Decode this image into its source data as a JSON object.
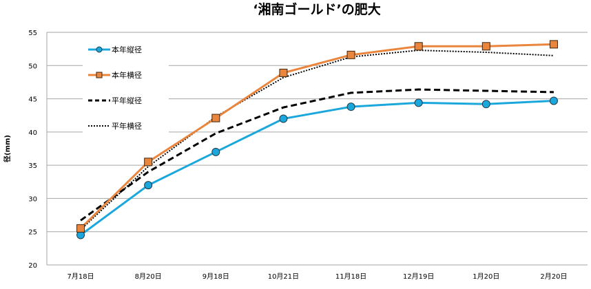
{
  "chart_data": {
    "type": "line",
    "title": "‘湘南ゴールド’の肥大",
    "xlabel": "",
    "ylabel": "径(mm)",
    "ylim": [
      20,
      55
    ],
    "yticks": [
      20,
      25,
      30,
      35,
      40,
      45,
      50,
      55
    ],
    "grid": true,
    "legend_position": "top-left",
    "categories": [
      "7月18日",
      "8月20日",
      "9月18日",
      "10月21日",
      "11月18日",
      "12月19日",
      "1月20日",
      "2月20日"
    ],
    "series": [
      {
        "name": "本年縦径",
        "color": "#1aa7dc",
        "style": "solid-circle",
        "values": [
          24.5,
          32.0,
          37.0,
          42.0,
          43.8,
          44.4,
          44.2,
          44.7
        ]
      },
      {
        "name": "本年横径",
        "color": "#e9853d",
        "style": "solid-square",
        "values": [
          25.5,
          35.5,
          42.1,
          48.9,
          51.6,
          52.9,
          52.9,
          53.2
        ]
      },
      {
        "name": "平年縦径",
        "color": "#000000",
        "style": "dashed",
        "values": [
          26.7,
          34.0,
          39.8,
          43.7,
          45.9,
          46.4,
          46.2,
          46.0
        ]
      },
      {
        "name": "平年横径",
        "color": "#000000",
        "style": "dotted",
        "values": [
          25.3,
          34.8,
          42.3,
          48.2,
          51.3,
          52.3,
          52.0,
          51.5
        ]
      }
    ]
  }
}
